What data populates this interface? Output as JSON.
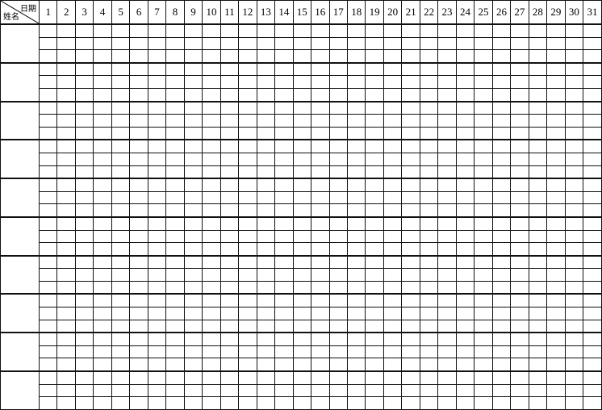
{
  "header": {
    "corner_top": "日期",
    "corner_bottom": "姓名",
    "days": [
      "1",
      "2",
      "3",
      "4",
      "5",
      "6",
      "7",
      "8",
      "9",
      "10",
      "11",
      "12",
      "13",
      "14",
      "15",
      "16",
      "17",
      "18",
      "19",
      "20",
      "21",
      "22",
      "23",
      "24",
      "25",
      "26",
      "27",
      "28",
      "29",
      "30",
      "31"
    ]
  },
  "groups": 10,
  "rows_per_group": 3
}
